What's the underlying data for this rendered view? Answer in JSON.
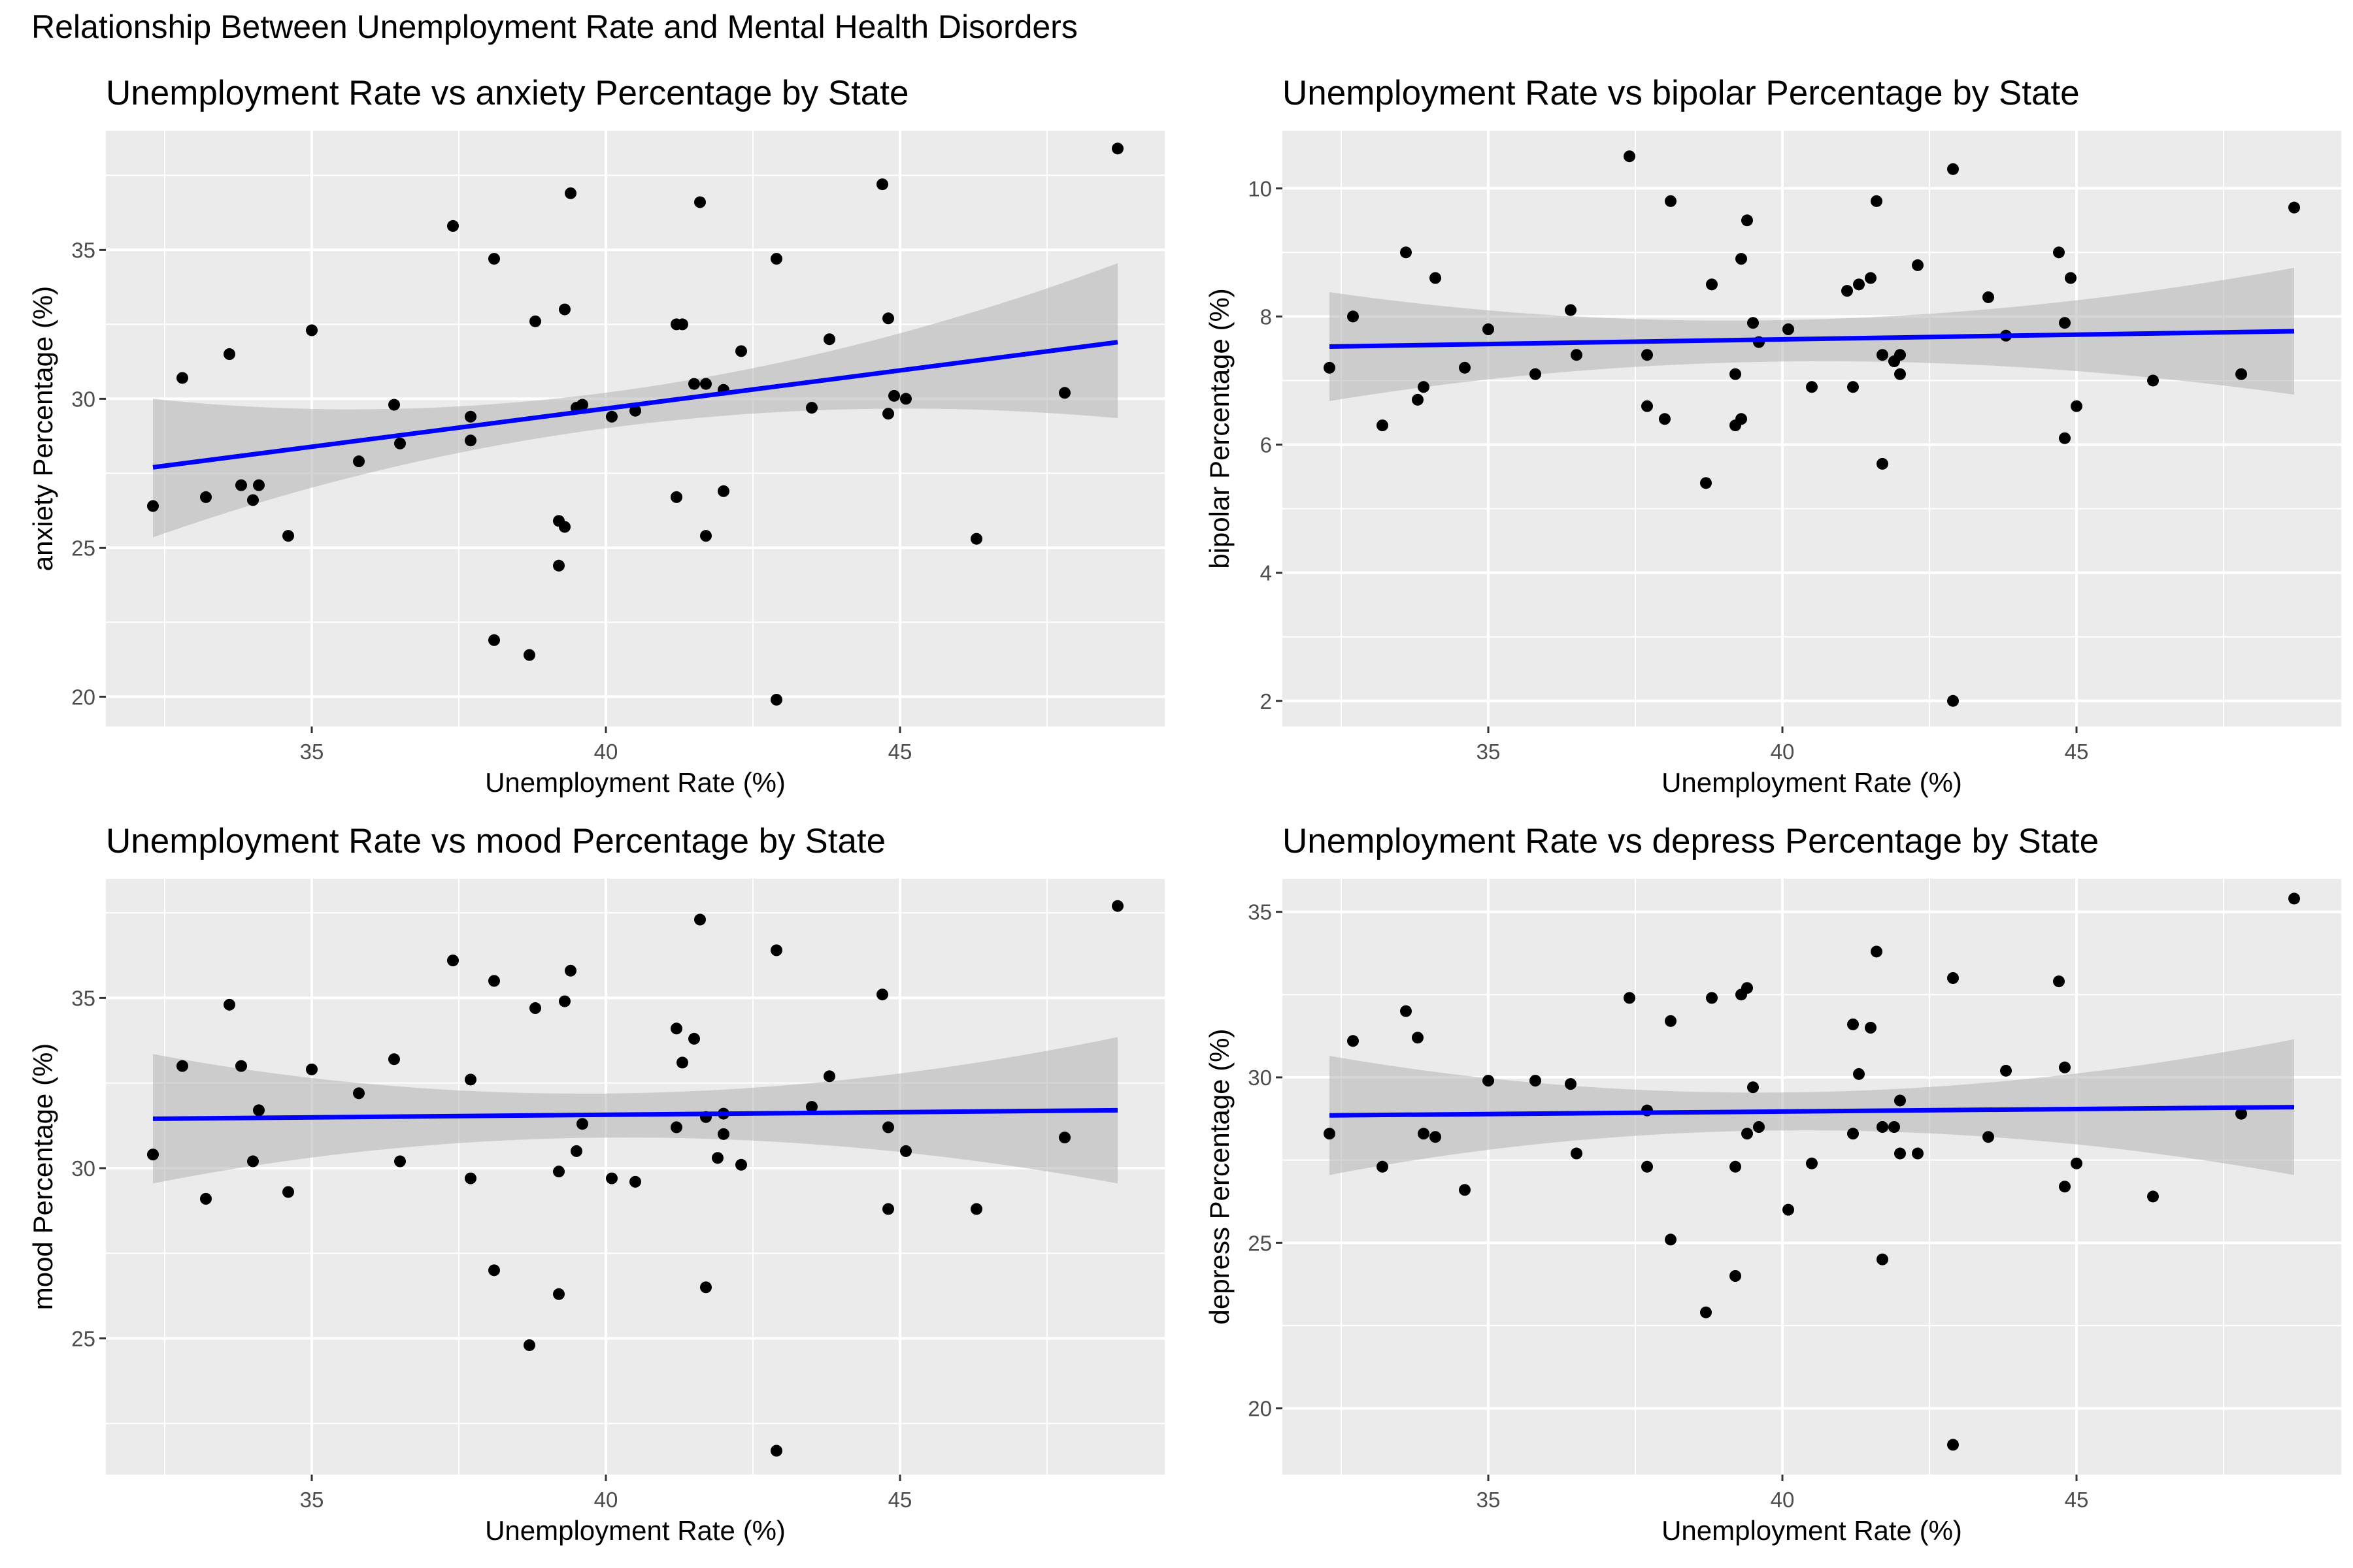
{
  "title": "Relationship Between Unemployment Rate and Mental Health Disorders",
  "colors": {
    "panel_bg": "#ebebeb",
    "grid_major": "#ffffff",
    "point": "#000000",
    "fit_line": "#0000ff",
    "ribbon": "#b3b3b3"
  },
  "chart_data": [
    {
      "type": "scatter",
      "title": "Unemployment Rate vs anxiety Percentage by State",
      "xlabel": "Unemployment Rate (%)",
      "ylabel": "anxiety Percentage (%)",
      "xlim": [
        31.5,
        49.5
      ],
      "ylim": [
        19,
        39
      ],
      "xticks": [
        35,
        40,
        45
      ],
      "yticks": [
        20,
        25,
        30,
        35
      ],
      "grid": true,
      "x": [
        32.3,
        32.8,
        33.2,
        33.6,
        33.8,
        34.0,
        34.1,
        34.6,
        35.0,
        35.8,
        36.4,
        36.5,
        37.4,
        37.7,
        37.7,
        38.1,
        38.1,
        38.7,
        38.8,
        39.2,
        39.2,
        39.3,
        39.3,
        39.4,
        39.5,
        39.6,
        40.1,
        40.5,
        41.2,
        41.2,
        41.3,
        41.5,
        41.6,
        41.7,
        41.7,
        42.0,
        42.0,
        42.3,
        42.9,
        42.9,
        43.5,
        43.8,
        44.7,
        44.8,
        44.8,
        44.9,
        45.1,
        46.3,
        47.8,
        48.7
      ],
      "y": [
        26.4,
        30.7,
        26.7,
        31.5,
        27.1,
        26.6,
        27.1,
        25.4,
        32.3,
        27.9,
        29.8,
        28.5,
        35.8,
        29.4,
        28.6,
        21.9,
        34.7,
        21.4,
        32.6,
        24.4,
        25.9,
        33.0,
        25.7,
        36.9,
        29.7,
        29.8,
        29.4,
        29.6,
        32.5,
        26.7,
        32.5,
        30.5,
        36.6,
        30.5,
        25.4,
        30.3,
        26.9,
        31.6,
        34.7,
        19.9,
        29.7,
        32.0,
        37.2,
        29.5,
        32.7,
        30.1,
        30.0,
        25.3,
        30.2,
        38.4
      ],
      "fit": {
        "x": [
          32.3,
          48.7
        ],
        "y": [
          27.7,
          31.9
        ],
        "ci_lower": [
          25.35,
          29.35
        ],
        "ci_upper": [
          30.0,
          34.55
        ],
        "ci_x_mid": 40.2,
        "ci_lower_mid": 29.1,
        "ci_upper_mid": 30.3
      }
    },
    {
      "type": "scatter",
      "title": "Unemployment Rate vs bipolar Percentage by State",
      "xlabel": "Unemployment Rate (%)",
      "ylabel": "bipolar Percentage (%)",
      "xlim": [
        31.5,
        49.5
      ],
      "ylim": [
        1.6,
        10.9
      ],
      "xticks": [
        35,
        40,
        45
      ],
      "yticks": [
        2,
        4,
        6,
        8,
        10
      ],
      "grid": true,
      "x": [
        32.3,
        32.7,
        33.2,
        33.6,
        33.8,
        33.9,
        34.1,
        34.6,
        35.0,
        35.8,
        36.4,
        36.5,
        37.4,
        37.7,
        37.7,
        38.0,
        38.1,
        38.7,
        38.8,
        39.2,
        39.2,
        39.3,
        39.3,
        39.4,
        39.5,
        39.6,
        40.1,
        40.5,
        41.1,
        41.2,
        41.3,
        41.5,
        41.6,
        41.7,
        41.7,
        41.9,
        42.0,
        42.0,
        42.3,
        42.9,
        42.9,
        43.5,
        43.8,
        44.7,
        44.8,
        44.8,
        44.9,
        45.0,
        46.3,
        47.8,
        48.7
      ],
      "y": [
        7.2,
        8.0,
        6.3,
        9.0,
        6.7,
        6.9,
        8.6,
        7.2,
        7.8,
        7.1,
        8.1,
        7.4,
        10.5,
        7.4,
        6.6,
        6.4,
        9.8,
        5.4,
        8.5,
        6.3,
        7.1,
        8.9,
        6.4,
        9.5,
        7.9,
        7.6,
        7.8,
        6.9,
        8.4,
        6.9,
        8.5,
        8.6,
        9.8,
        7.4,
        5.7,
        7.3,
        7.4,
        7.1,
        8.8,
        10.3,
        2.0,
        8.3,
        7.7,
        9.0,
        6.1,
        7.9,
        8.6,
        6.6,
        7.0,
        7.1,
        9.7
      ],
      "fit": {
        "x": [
          32.3,
          48.7
        ],
        "y": [
          7.53,
          7.77
        ],
        "ci_lower": [
          6.68,
          6.78
        ],
        "ci_upper": [
          8.38,
          8.76
        ],
        "ci_x_mid": 40.2,
        "ci_lower_mid": 7.3,
        "ci_upper_mid": 7.95
      }
    },
    {
      "type": "scatter",
      "title": "Unemployment Rate vs mood Percentage by State",
      "xlabel": "Unemployment Rate (%)",
      "ylabel": "mood Percentage (%)",
      "xlim": [
        31.5,
        49.5
      ],
      "ylim": [
        21,
        38.5
      ],
      "xticks": [
        35,
        40,
        45
      ],
      "yticks": [
        25,
        30,
        35
      ],
      "grid": true,
      "x": [
        32.3,
        32.8,
        33.2,
        33.6,
        33.8,
        34.0,
        34.1,
        34.6,
        35.0,
        35.8,
        36.4,
        36.5,
        37.4,
        37.7,
        37.7,
        38.1,
        38.1,
        38.7,
        38.8,
        39.2,
        39.2,
        39.3,
        39.4,
        39.5,
        39.6,
        40.1,
        40.5,
        41.2,
        41.2,
        41.3,
        41.5,
        41.6,
        41.7,
        41.7,
        41.9,
        42.0,
        42.0,
        42.3,
        42.9,
        42.9,
        43.5,
        43.8,
        44.7,
        44.8,
        44.8,
        45.1,
        46.3,
        47.8,
        48.7
      ],
      "y": [
        30.4,
        33.0,
        29.1,
        34.8,
        33.0,
        30.2,
        31.7,
        29.3,
        32.9,
        32.2,
        33.2,
        30.2,
        36.1,
        29.7,
        32.6,
        27.0,
        35.5,
        24.8,
        34.7,
        26.3,
        29.9,
        34.9,
        35.8,
        30.5,
        31.3,
        29.7,
        29.6,
        34.1,
        31.2,
        33.1,
        33.8,
        37.3,
        31.5,
        26.5,
        30.3,
        31.0,
        31.6,
        30.1,
        36.4,
        21.7,
        31.8,
        32.7,
        35.1,
        28.8,
        31.2,
        30.5,
        28.8,
        30.9,
        37.7
      ],
      "fit": {
        "x": [
          32.3,
          48.7
        ],
        "y": [
          31.45,
          31.7
        ],
        "ci_lower": [
          29.55,
          29.55
        ],
        "ci_upper": [
          33.35,
          33.85
        ],
        "ci_x_mid": 40.2,
        "ci_lower_mid": 30.9,
        "ci_upper_mid": 32.2
      }
    },
    {
      "type": "scatter",
      "title": "Unemployment Rate vs depress Percentage by State",
      "xlabel": "Unemployment Rate (%)",
      "ylabel": "depress Percentage (%)",
      "xlim": [
        31.5,
        49.5
      ],
      "ylim": [
        18,
        36
      ],
      "xticks": [
        35,
        40,
        45
      ],
      "yticks": [
        20,
        25,
        30,
        35
      ],
      "grid": true,
      "x": [
        32.3,
        32.7,
        33.2,
        33.6,
        33.8,
        33.9,
        34.1,
        34.6,
        35.0,
        35.8,
        36.4,
        36.5,
        37.4,
        37.7,
        37.7,
        38.1,
        38.1,
        38.7,
        38.8,
        39.2,
        39.2,
        39.3,
        39.4,
        39.4,
        39.5,
        39.6,
        40.1,
        40.5,
        41.2,
        41.2,
        41.3,
        41.5,
        41.6,
        41.7,
        41.7,
        41.9,
        42.0,
        42.0,
        42.3,
        42.9,
        42.9,
        43.5,
        43.8,
        44.7,
        44.8,
        44.8,
        45.0,
        46.3,
        47.8,
        48.7
      ],
      "y": [
        28.3,
        31.1,
        27.3,
        32.0,
        31.2,
        28.3,
        28.2,
        26.6,
        29.9,
        29.9,
        29.8,
        27.7,
        32.4,
        29.0,
        27.3,
        25.1,
        31.7,
        22.9,
        32.4,
        27.3,
        24.0,
        32.5,
        32.7,
        28.3,
        29.7,
        28.5,
        26.0,
        27.4,
        31.6,
        28.3,
        30.1,
        31.5,
        33.8,
        28.5,
        24.5,
        28.5,
        27.7,
        29.3,
        27.7,
        33.0,
        18.9,
        28.2,
        30.2,
        32.9,
        26.7,
        30.3,
        27.4,
        26.4,
        28.9,
        35.4
      ],
      "fit": {
        "x": [
          32.3,
          48.7
        ],
        "y": [
          28.85,
          29.1
        ],
        "ci_lower": [
          27.05,
          27.05
        ],
        "ci_upper": [
          30.65,
          31.15
        ],
        "ci_x_mid": 40.2,
        "ci_lower_mid": 28.4,
        "ci_upper_mid": 29.55
      }
    }
  ]
}
